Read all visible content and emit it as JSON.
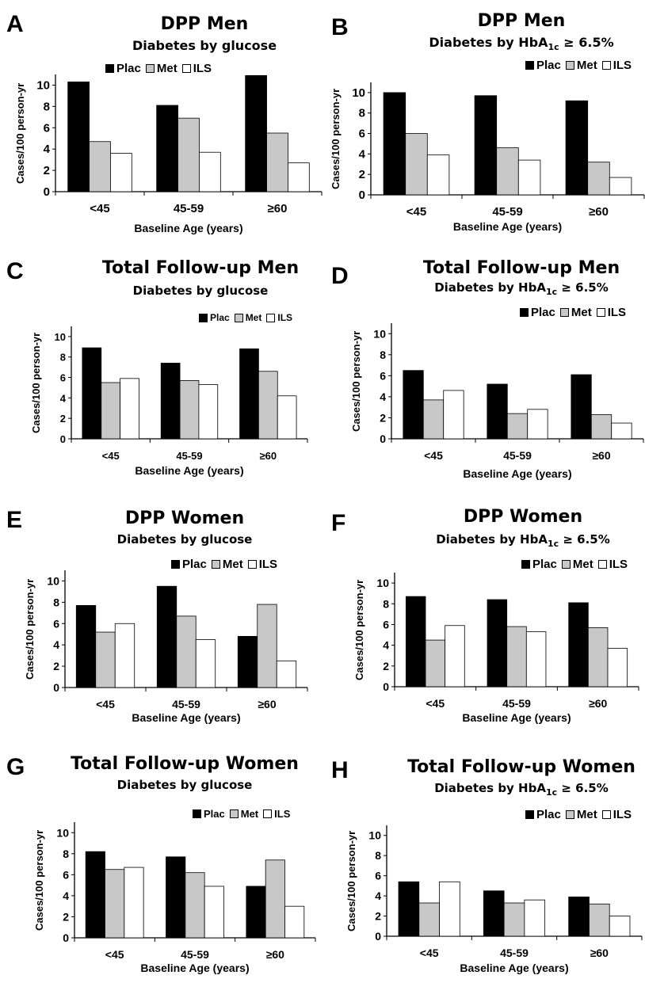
{
  "colors": {
    "Plac": "#000000",
    "Met": "#c8c8c8",
    "ILS": "#ffffff"
  },
  "chart_data": [
    {
      "panel": "A",
      "type": "bar",
      "title": "DPP Men",
      "subtitle_pre": "Diabetes by glucose",
      "subtitle_sub": "",
      "subtitle_post": "",
      "xlabel": "Baseline Age (years)",
      "ylabel": "Cases/100 person-yr",
      "categories": [
        "<45",
        "45-59",
        "≥60"
      ],
      "yticks": [
        "0",
        "2",
        "4",
        "6",
        "8",
        "10"
      ],
      "ylim": [
        0,
        11
      ],
      "legend_position": "top-left",
      "series": [
        {
          "name": "Plac",
          "values": [
            10.3,
            8.1,
            10.9
          ]
        },
        {
          "name": "Met",
          "values": [
            4.7,
            6.9,
            5.5
          ]
        },
        {
          "name": "ILS",
          "values": [
            3.6,
            3.7,
            2.7
          ]
        }
      ]
    },
    {
      "panel": "B",
      "type": "bar",
      "title": "DPP Men",
      "subtitle_pre": "Diabetes by HbA",
      "subtitle_sub": "1c",
      "subtitle_post": " ≥ 6.5%",
      "xlabel": "Baseline Age (years)",
      "ylabel": "Cases/100 person-yr",
      "categories": [
        "<45",
        "45-59",
        "≥60"
      ],
      "yticks": [
        "0",
        "2",
        "4",
        "6",
        "8",
        "10"
      ],
      "ylim": [
        0,
        11
      ],
      "legend_position": "top-right",
      "series": [
        {
          "name": "Plac",
          "values": [
            10.0,
            9.7,
            9.2
          ]
        },
        {
          "name": "Met",
          "values": [
            6.0,
            4.6,
            3.2
          ]
        },
        {
          "name": "ILS",
          "values": [
            3.9,
            3.4,
            1.7
          ]
        }
      ]
    },
    {
      "panel": "C",
      "type": "bar",
      "title": "Total Follow-up Men",
      "subtitle_pre": "Diabetes by glucose",
      "subtitle_sub": "",
      "subtitle_post": "",
      "xlabel": "Baseline Age (years)",
      "ylabel": "Cases/100 person-yr",
      "categories": [
        "<45",
        "45-59",
        "≥60"
      ],
      "yticks": [
        "0",
        "2",
        "4",
        "6",
        "8",
        "10"
      ],
      "ylim": [
        0,
        11
      ],
      "legend_position": "top-right",
      "series": [
        {
          "name": "Plac",
          "values": [
            8.9,
            7.4,
            8.8
          ]
        },
        {
          "name": "Met",
          "values": [
            5.5,
            5.7,
            6.6
          ]
        },
        {
          "name": "ILS",
          "values": [
            5.9,
            5.3,
            4.2
          ]
        }
      ]
    },
    {
      "panel": "D",
      "type": "bar",
      "title": "Total Follow-up Men",
      "subtitle_pre": "Diabetes by HbA",
      "subtitle_sub": "1c",
      "subtitle_post": " ≥ 6.5%",
      "xlabel": "Baseline Age (years)",
      "ylabel": "Cases/100 person-yr",
      "categories": [
        "<45",
        "45-59",
        "≥60"
      ],
      "yticks": [
        "0",
        "2",
        "4",
        "6",
        "8",
        "10"
      ],
      "ylim": [
        0,
        11
      ],
      "legend_position": "top-right",
      "series": [
        {
          "name": "Plac",
          "values": [
            6.5,
            5.2,
            6.1
          ]
        },
        {
          "name": "Met",
          "values": [
            3.7,
            2.4,
            2.3
          ]
        },
        {
          "name": "ILS",
          "values": [
            4.6,
            2.8,
            1.5
          ]
        }
      ]
    },
    {
      "panel": "E",
      "type": "bar",
      "title": "DPP Women",
      "subtitle_pre": "Diabetes by glucose",
      "subtitle_sub": "",
      "subtitle_post": "",
      "xlabel": "Baseline Age (years)",
      "ylabel": "Cases/100 person-yr",
      "categories": [
        "<45",
        "45-59",
        "≥60"
      ],
      "yticks": [
        "0",
        "2",
        "4",
        "6",
        "8",
        "10"
      ],
      "ylim": [
        0,
        11
      ],
      "legend_position": "top-right",
      "series": [
        {
          "name": "Plac",
          "values": [
            7.7,
            9.5,
            4.8
          ]
        },
        {
          "name": "Met",
          "values": [
            5.2,
            6.7,
            7.8
          ]
        },
        {
          "name": "ILS",
          "values": [
            6.0,
            4.5,
            2.5
          ]
        }
      ]
    },
    {
      "panel": "F",
      "type": "bar",
      "title": "DPP Women",
      "subtitle_pre": "Diabetes by HbA",
      "subtitle_sub": "1c",
      "subtitle_post": " ≥ 6.5%",
      "xlabel": "Baseline Age (years)",
      "ylabel": "Cases/100 person-yr",
      "categories": [
        "<45",
        "45-59",
        "≥60"
      ],
      "yticks": [
        "0",
        "2",
        "4",
        "6",
        "8",
        "10"
      ],
      "ylim": [
        0,
        11
      ],
      "legend_position": "top-right",
      "series": [
        {
          "name": "Plac",
          "values": [
            8.7,
            8.4,
            8.1
          ]
        },
        {
          "name": "Met",
          "values": [
            4.5,
            5.8,
            5.7
          ]
        },
        {
          "name": "ILS",
          "values": [
            5.9,
            5.3,
            3.7
          ]
        }
      ]
    },
    {
      "panel": "G",
      "type": "bar",
      "title": "Total Follow-up Women",
      "subtitle_pre": "Diabetes by glucose",
      "subtitle_sub": "",
      "subtitle_post": "",
      "xlabel": "Baseline Age (years)",
      "ylabel": "Cases/100 person-yr",
      "categories": [
        "<45",
        "45-59",
        "≥60"
      ],
      "yticks": [
        "0",
        "2",
        "4",
        "6",
        "8",
        "10"
      ],
      "ylim": [
        0,
        11
      ],
      "legend_position": "top-right",
      "series": [
        {
          "name": "Plac",
          "values": [
            8.2,
            7.7,
            4.9
          ]
        },
        {
          "name": "Met",
          "values": [
            6.5,
            6.2,
            7.4
          ]
        },
        {
          "name": "ILS",
          "values": [
            6.7,
            4.9,
            3.0
          ]
        }
      ]
    },
    {
      "panel": "H",
      "type": "bar",
      "title": "Total Follow-up Women",
      "subtitle_pre": "Diabetes by HbA",
      "subtitle_sub": "1c",
      "subtitle_post": " ≥ 6.5%",
      "xlabel": "Baseline Age (years)",
      "ylabel": "Cases/100 person-yr",
      "categories": [
        "<45",
        "45-59",
        "≥60"
      ],
      "yticks": [
        "0",
        "2",
        "4",
        "6",
        "8",
        "10"
      ],
      "ylim": [
        0,
        11
      ],
      "legend_position": "top-right",
      "series": [
        {
          "name": "Plac",
          "values": [
            5.4,
            4.5,
            3.9
          ]
        },
        {
          "name": "Met",
          "values": [
            3.3,
            3.3,
            3.2
          ]
        },
        {
          "name": "ILS",
          "values": [
            5.4,
            3.6,
            2.0
          ]
        }
      ]
    }
  ]
}
